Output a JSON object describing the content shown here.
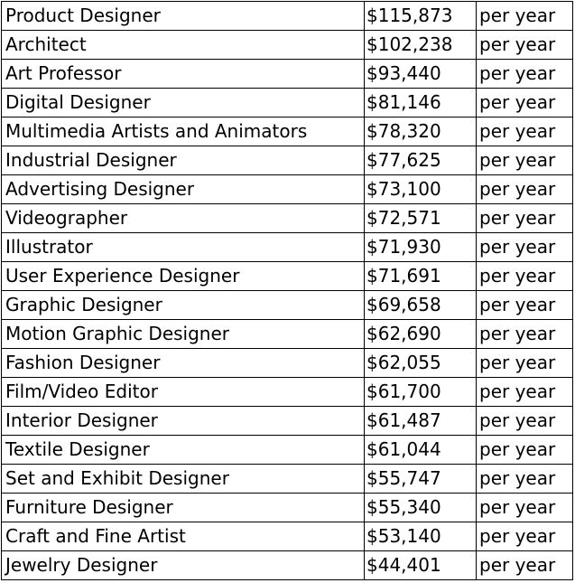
{
  "rows": [
    {
      "title": "Product Designer",
      "salary": "$115,873",
      "period": "per year"
    },
    {
      "title": "Architect",
      "salary": "$102,238",
      "period": "per year"
    },
    {
      "title": "Art Professor",
      "salary": "$93,440",
      "period": "per year"
    },
    {
      "title": "Digital Designer",
      "salary": "$81,146",
      "period": "per year"
    },
    {
      "title": "Multimedia Artists and Animators",
      "salary": "$78,320",
      "period": "per year"
    },
    {
      "title": "Industrial Designer",
      "salary": "$77,625",
      "period": "per year"
    },
    {
      "title": "Advertising Designer",
      "salary": "$73,100",
      "period": "per year"
    },
    {
      "title": "Videographer",
      "salary": "$72,571",
      "period": "per year"
    },
    {
      "title": "Illustrator",
      "salary": "$71,930",
      "period": "per year"
    },
    {
      "title": "User Experience Designer",
      "salary": "$71,691",
      "period": "per year"
    },
    {
      "title": "Graphic Designer",
      "salary": "$69,658",
      "period": "per year"
    },
    {
      "title": "Motion Graphic Designer",
      "salary": "$62,690",
      "period": "per year"
    },
    {
      "title": "Fashion Designer",
      "salary": "$62,055",
      "period": "per year"
    },
    {
      "title": "Film/Video Editor",
      "salary": "$61,700",
      "period": "per year"
    },
    {
      "title": "Interior Designer",
      "salary": "$61,487",
      "period": "per year"
    },
    {
      "title": "Textile Designer",
      "salary": "$61,044",
      "period": "per year"
    },
    {
      "title": "Set and Exhibit Designer",
      "salary": "$55,747",
      "period": "per year"
    },
    {
      "title": "Furniture Designer",
      "salary": "$55,340",
      "period": "per year"
    },
    {
      "title": "Craft and Fine Artist",
      "salary": "$53,140",
      "period": "per year"
    },
    {
      "title": "Jewelry Designer",
      "salary": "$44,401",
      "period": "per year"
    }
  ]
}
